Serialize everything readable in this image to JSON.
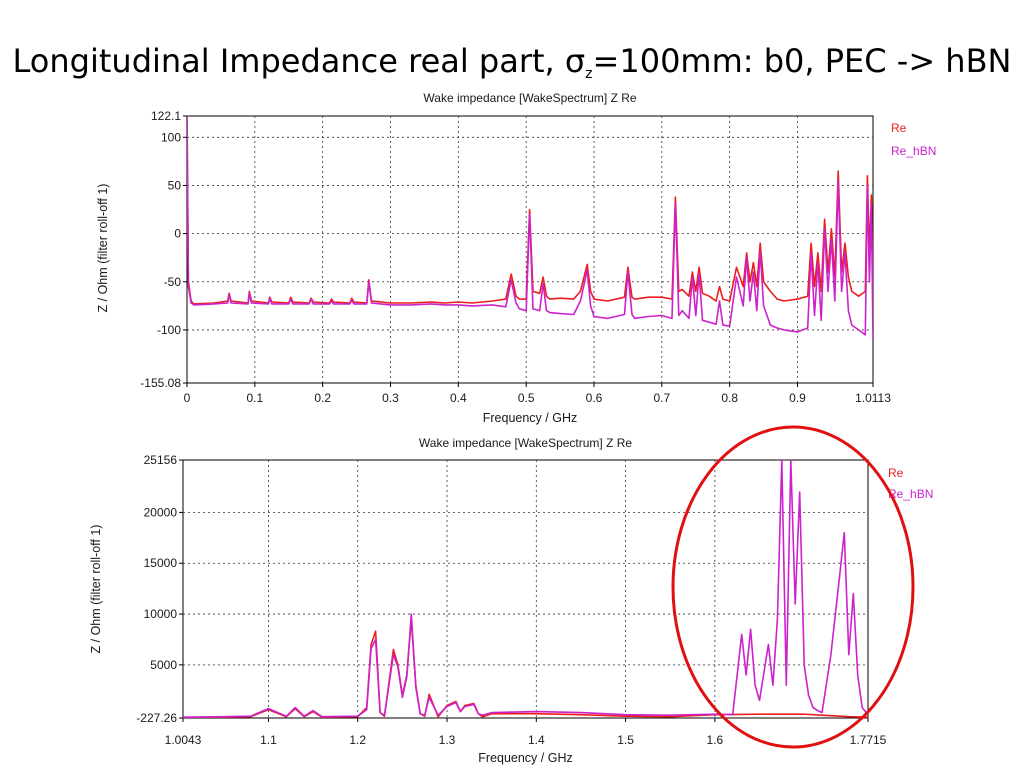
{
  "slide": {
    "title_main": "Longitudinal Impedance real part, σ",
    "title_sub": "z",
    "title_rest": "=100mm: b0, PEC -> hBN"
  },
  "colors": {
    "re": "#ee1c1c",
    "re_hbn": "#cc22cc",
    "circle": "#e01010"
  },
  "chart_data": [
    {
      "type": "line",
      "title": "Wake impedance [WakeSpectrum] Z Re",
      "xlabel": "Frequency / GHz",
      "ylabel": "Z / Ohm (filter roll-off 1)",
      "xlim": [
        0,
        1.0113
      ],
      "ylim": [
        -155.08,
        122.1
      ],
      "xticks": [
        "0",
        "0.1",
        "0.2",
        "0.3",
        "0.4",
        "0.5",
        "0.6",
        "0.7",
        "0.8",
        "0.9",
        "1.0113"
      ],
      "yticks": [
        "122.1",
        "100",
        "50",
        "0",
        "-50",
        "-100",
        "-155.08"
      ],
      "legend": [
        "Re",
        "Re_hBN"
      ],
      "legend_position": "right",
      "grid": true,
      "series": [
        {
          "name": "Re",
          "color": "#ee1c1c",
          "x": [
            0,
            0.002,
            0.006,
            0.01,
            0.04,
            0.06,
            0.062,
            0.065,
            0.09,
            0.092,
            0.095,
            0.12,
            0.122,
            0.125,
            0.15,
            0.153,
            0.156,
            0.18,
            0.183,
            0.186,
            0.21,
            0.213,
            0.216,
            0.24,
            0.243,
            0.246,
            0.265,
            0.268,
            0.272,
            0.3,
            0.33,
            0.36,
            0.38,
            0.4,
            0.42,
            0.45,
            0.47,
            0.478,
            0.485,
            0.49,
            0.5,
            0.505,
            0.51,
            0.52,
            0.525,
            0.53,
            0.535,
            0.55,
            0.57,
            0.58,
            0.59,
            0.595,
            0.6,
            0.62,
            0.645,
            0.65,
            0.656,
            0.66,
            0.68,
            0.7,
            0.715,
            0.72,
            0.725,
            0.73,
            0.74,
            0.745,
            0.75,
            0.755,
            0.76,
            0.77,
            0.78,
            0.785,
            0.79,
            0.8,
            0.81,
            0.82,
            0.825,
            0.83,
            0.835,
            0.84,
            0.845,
            0.85,
            0.86,
            0.87,
            0.88,
            0.9,
            0.915,
            0.92,
            0.925,
            0.93,
            0.935,
            0.94,
            0.945,
            0.95,
            0.955,
            0.96,
            0.965,
            0.97,
            0.975,
            0.98,
            0.99,
            1.0,
            1.003,
            1.006,
            1.009,
            1.0113
          ],
          "y": [
            122.1,
            -50,
            -70,
            -73,
            -72,
            -70,
            -62,
            -70,
            -72,
            -60,
            -70,
            -72,
            -66,
            -71,
            -72,
            -66,
            -71,
            -72,
            -67,
            -71,
            -72,
            -68,
            -71,
            -72,
            -67,
            -71,
            -72,
            -48,
            -70,
            -72,
            -72,
            -71,
            -72,
            -71,
            -72,
            -70,
            -68,
            -42,
            -65,
            -68,
            -68,
            25,
            -60,
            -62,
            -45,
            -65,
            -68,
            -67,
            -68,
            -60,
            -32,
            -60,
            -68,
            -70,
            -66,
            -35,
            -66,
            -68,
            -66,
            -66,
            -68,
            38,
            -60,
            -58,
            -65,
            -40,
            -60,
            -35,
            -62,
            -65,
            -70,
            -55,
            -68,
            -70,
            -35,
            -55,
            -20,
            -50,
            -30,
            -55,
            -10,
            -50,
            -60,
            -68,
            -70,
            -68,
            -65,
            -10,
            -55,
            -20,
            -60,
            15,
            -40,
            5,
            -45,
            65,
            -40,
            -10,
            -45,
            -60,
            -65,
            -60,
            60,
            -20,
            40,
            -70
          ]
        },
        {
          "name": "Re_hBN",
          "color": "#cc22cc",
          "x": [
            0,
            0.002,
            0.006,
            0.01,
            0.04,
            0.06,
            0.062,
            0.065,
            0.09,
            0.092,
            0.095,
            0.12,
            0.122,
            0.125,
            0.15,
            0.153,
            0.156,
            0.18,
            0.183,
            0.186,
            0.21,
            0.213,
            0.216,
            0.24,
            0.243,
            0.246,
            0.265,
            0.268,
            0.272,
            0.3,
            0.33,
            0.36,
            0.38,
            0.4,
            0.42,
            0.45,
            0.47,
            0.478,
            0.485,
            0.49,
            0.5,
            0.505,
            0.51,
            0.52,
            0.525,
            0.53,
            0.535,
            0.55,
            0.57,
            0.58,
            0.59,
            0.595,
            0.6,
            0.62,
            0.645,
            0.65,
            0.656,
            0.66,
            0.68,
            0.7,
            0.715,
            0.72,
            0.725,
            0.73,
            0.74,
            0.745,
            0.75,
            0.755,
            0.76,
            0.77,
            0.78,
            0.785,
            0.79,
            0.8,
            0.81,
            0.82,
            0.825,
            0.83,
            0.835,
            0.84,
            0.845,
            0.85,
            0.86,
            0.87,
            0.88,
            0.9,
            0.915,
            0.92,
            0.925,
            0.93,
            0.935,
            0.94,
            0.945,
            0.95,
            0.955,
            0.96,
            0.965,
            0.97,
            0.975,
            0.98,
            0.99,
            1.0,
            1.003,
            1.006,
            1.009,
            1.0113
          ],
          "y": [
            122.1,
            -55,
            -72,
            -74,
            -73,
            -72,
            -63,
            -72,
            -73,
            -62,
            -72,
            -73,
            -67,
            -73,
            -73,
            -68,
            -73,
            -73,
            -68,
            -73,
            -73,
            -70,
            -73,
            -73,
            -69,
            -73,
            -73,
            -50,
            -72,
            -74,
            -74,
            -73,
            -74,
            -74,
            -75,
            -74,
            -76,
            -48,
            -72,
            -78,
            -80,
            20,
            -78,
            -80,
            -52,
            -80,
            -82,
            -83,
            -84,
            -70,
            -38,
            -75,
            -86,
            -88,
            -84,
            -40,
            -84,
            -88,
            -86,
            -85,
            -88,
            32,
            -85,
            -80,
            -88,
            -45,
            -85,
            -42,
            -90,
            -92,
            -94,
            -70,
            -95,
            -96,
            -45,
            -75,
            -25,
            -70,
            -40,
            -80,
            -18,
            -75,
            -95,
            -98,
            -100,
            -102,
            -98,
            -20,
            -85,
            -30,
            -90,
            5,
            -60,
            -5,
            -70,
            55,
            -60,
            -20,
            -80,
            -95,
            -100,
            -105,
            50,
            -50,
            30,
            -110
          ]
        }
      ]
    },
    {
      "type": "line",
      "title": "Wake impedance [WakeSpectrum] Z Re",
      "xlabel": "Frequency / GHz",
      "ylabel": "Z / Ohm (filter roll-off 1)",
      "xlim": [
        1.0043,
        1.7715
      ],
      "ylim": [
        -227.26,
        25156
      ],
      "xticks": [
        "1.0043",
        "1.1",
        "1.2",
        "1.3",
        "1.4",
        "1.5",
        "1.6",
        "1.7715"
      ],
      "yticks": [
        "25156",
        "20000",
        "15000",
        "10000",
        "5000",
        "-227.26"
      ],
      "legend": [
        "Re",
        "Re_hBN"
      ],
      "legend_position": "right",
      "grid": true,
      "series": [
        {
          "name": "Re",
          "color": "#ee1c1c",
          "x": [
            1.0043,
            1.05,
            1.08,
            1.1,
            1.12,
            1.13,
            1.14,
            1.15,
            1.16,
            1.2,
            1.21,
            1.215,
            1.22,
            1.225,
            1.23,
            1.24,
            1.245,
            1.25,
            1.255,
            1.26,
            1.265,
            1.27,
            1.275,
            1.28,
            1.29,
            1.3,
            1.31,
            1.315,
            1.32,
            1.33,
            1.335,
            1.34,
            1.35,
            1.4,
            1.45,
            1.5,
            1.55,
            1.6,
            1.65,
            1.7,
            1.75,
            1.7715
          ],
          "y": [
            -200,
            -150,
            -100,
            600,
            -100,
            700,
            -100,
            400,
            -150,
            -100,
            800,
            7000,
            8300,
            300,
            -50,
            6500,
            5000,
            2000,
            4000,
            9500,
            3000,
            200,
            -50,
            2100,
            -100,
            1000,
            1400,
            400,
            1000,
            1200,
            200,
            -100,
            200,
            200,
            100,
            -50,
            -100,
            100,
            150,
            150,
            -100,
            -150
          ]
        },
        {
          "name": "Re_hBN",
          "color": "#cc22cc",
          "x": [
            1.0043,
            1.05,
            1.08,
            1.1,
            1.12,
            1.13,
            1.14,
            1.15,
            1.16,
            1.2,
            1.21,
            1.215,
            1.22,
            1.225,
            1.23,
            1.24,
            1.245,
            1.25,
            1.255,
            1.26,
            1.265,
            1.27,
            1.275,
            1.28,
            1.29,
            1.3,
            1.31,
            1.315,
            1.32,
            1.33,
            1.335,
            1.34,
            1.35,
            1.4,
            1.45,
            1.5,
            1.55,
            1.6,
            1.62,
            1.63,
            1.635,
            1.64,
            1.645,
            1.65,
            1.66,
            1.665,
            1.67,
            1.675,
            1.68,
            1.685,
            1.69,
            1.695,
            1.7,
            1.705,
            1.71,
            1.715,
            1.72,
            1.73,
            1.74,
            1.745,
            1.75,
            1.755,
            1.76,
            1.765,
            1.7715
          ],
          "y": [
            -150,
            -100,
            -50,
            700,
            -50,
            800,
            -50,
            500,
            -100,
            -50,
            600,
            6600,
            7500,
            300,
            50,
            6000,
            4800,
            1800,
            3800,
            10000,
            2800,
            200,
            50,
            1800,
            50,
            900,
            1300,
            400,
            900,
            1100,
            200,
            50,
            300,
            400,
            300,
            100,
            50,
            150,
            100,
            8000,
            4000,
            8500,
            3000,
            1500,
            7000,
            3000,
            9500,
            25156,
            3000,
            25156,
            11000,
            22000,
            5000,
            2000,
            800,
            500,
            300,
            6000,
            14000,
            18000,
            6000,
            12000,
            4000,
            800,
            100
          ]
        }
      ]
    }
  ]
}
